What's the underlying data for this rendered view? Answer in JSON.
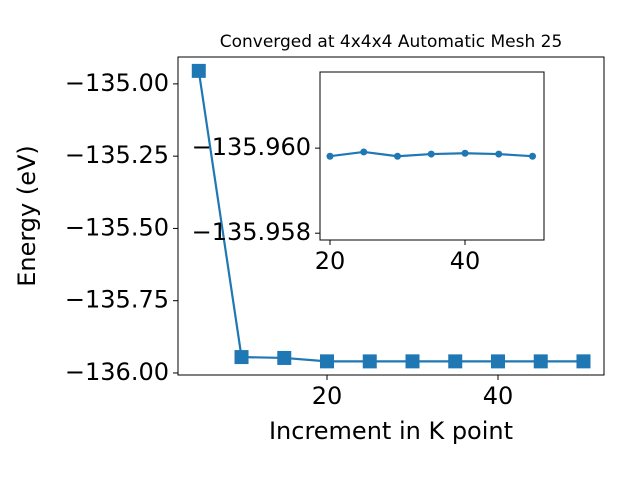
{
  "chart_data": [
    {
      "type": "line",
      "title": "Converged at 4x4x4 Automatic Mesh 25",
      "x_label": "Increment in K point",
      "y_label": "Energy (eV)",
      "x": [
        5,
        10,
        15,
        20,
        25,
        30,
        35,
        40,
        45,
        50
      ],
      "series": [
        {
          "color": "#1f77b4",
          "marker": "square",
          "values": [
            -134.955,
            -135.945,
            -135.948,
            -135.95981,
            -135.95991,
            -135.95981,
            -135.95986,
            -135.95988,
            -135.95986,
            -135.95981
          ]
        }
      ],
      "xlim": [
        2.57,
        52.4
      ],
      "xticks": [
        20,
        40
      ],
      "ylim": [
        -136.007,
        -134.907
      ],
      "yticks": [
        {
          "value": -135,
          "label": "−135.00"
        },
        {
          "value": -135.25,
          "label": "−135.25"
        },
        {
          "value": -135.5,
          "label": "−135.50"
        },
        {
          "value": -135.75,
          "label": "−135.75"
        },
        {
          "value": -136,
          "label": "−136.00"
        }
      ]
    },
    {
      "type": "line",
      "x": [
        20,
        25,
        30,
        35,
        40,
        45,
        50
      ],
      "series": [
        {
          "color": "#1f77b4",
          "marker": "circle",
          "values": [
            -135.95981,
            -135.95991,
            -135.95981,
            -135.95986,
            -135.95988,
            -135.95986,
            -135.95981
          ]
        }
      ],
      "xlim": [
        18.52,
        51.7
      ],
      "xticks": [
        20,
        40
      ],
      "ylim": [
        -135.95784,
        -135.96179
      ],
      "yticks": [
        {
          "value": -135.96,
          "label": "−135.960"
        },
        {
          "value": -135.958,
          "label": "−135.958"
        }
      ]
    }
  ]
}
